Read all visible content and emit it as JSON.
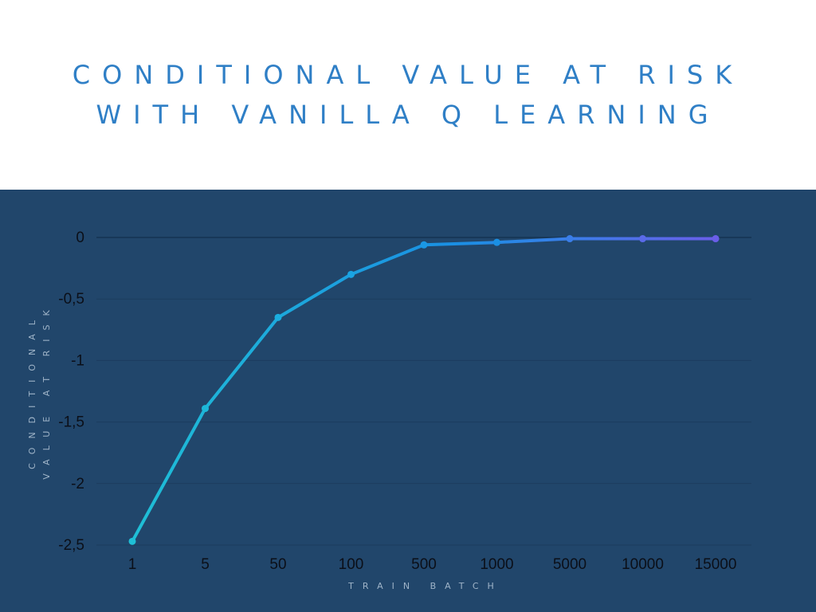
{
  "title_lines": [
    "CONDITIONAL VALUE AT RISK",
    "WITH VANILLA Q LEARNING"
  ],
  "chart_data": {
    "type": "line",
    "title": "CONDITIONAL VALUE AT RISK WITH VANILLA Q LEARNING",
    "xlabel": "TRAIN BATCH",
    "ylabel_lines": [
      "CONDITIONAL",
      "VALUE AT RISK"
    ],
    "categories": [
      "1",
      "5",
      "50",
      "100",
      "500",
      "1000",
      "5000",
      "10000",
      "15000"
    ],
    "values": [
      -2.47,
      -1.39,
      -0.65,
      -0.3,
      -0.06,
      -0.04,
      -0.01,
      -0.01,
      -0.01
    ],
    "ylim": [
      -2.5,
      0
    ],
    "yticks": [
      0,
      -0.5,
      -1,
      -1.5,
      -2,
      -2.5
    ],
    "ytick_labels": [
      "0",
      "-0,5",
      "-1",
      "-1,5",
      "-2",
      "-2,5"
    ],
    "grid": true,
    "colors": {
      "background": "#21466b",
      "line_start": "#1fbfd6",
      "line_mid": "#1a8fe3",
      "line_end": "#6a5ee8",
      "title": "#2f7fc6",
      "gridline": "#1c3c5e"
    }
  }
}
